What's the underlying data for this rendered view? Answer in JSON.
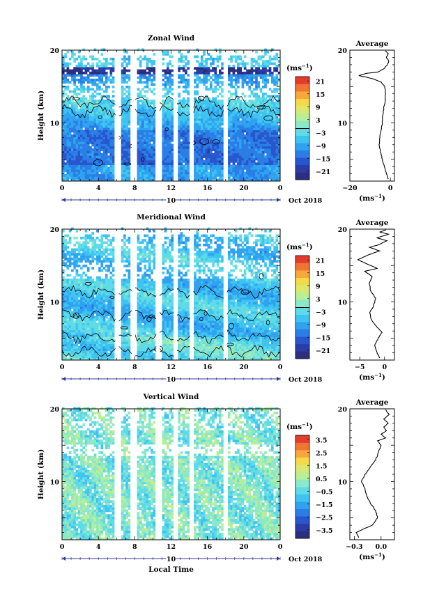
{
  "colors": {
    "cmap": [
      "#2b2f7e",
      "#2c3ca6",
      "#2856cc",
      "#2a7ee6",
      "#2fa3f0",
      "#3fc4f2",
      "#5fdbe8",
      "#8de8c8",
      "#b6ee9a",
      "#dbe870",
      "#f6d94b",
      "#f8a83a",
      "#f27434",
      "#e23c2c"
    ],
    "axis": "#000000",
    "date_axis": "#2b3a8f",
    "gap": "#ffffff"
  },
  "chart_data": [
    {
      "type": "heatmap",
      "title": "Zonal Wind",
      "ylabel": "Height (km)",
      "xlabel": "",
      "xlim": [
        0,
        24
      ],
      "ylim": [
        2,
        20
      ],
      "xticks": [
        "0",
        "4",
        "8",
        "12",
        "16",
        "20",
        "0"
      ],
      "yticks": [
        "10",
        "20"
      ],
      "date_label": "10",
      "date_right": "Oct 2018",
      "colorbar": {
        "unit": "(ms",
        "unit_sup": "−1",
        "ticks": [
          "21",
          "15",
          "9",
          "3",
          "−3",
          "−9",
          "−15",
          "−21"
        ],
        "range": [
          -24,
          24
        ]
      },
      "profile": {
        "title": "Average",
        "xlim": [
          -20,
          2
        ],
        "xticks": [
          "−20",
          "0"
        ],
        "xunit": "(ms",
        "xunit_sup": "−1",
        "points": [
          [
            -1,
            2.3
          ],
          [
            -2,
            3
          ],
          [
            -3,
            4
          ],
          [
            -4,
            5
          ],
          [
            -5,
            6
          ],
          [
            -5.6,
            7
          ],
          [
            -5.2,
            8
          ],
          [
            -4.6,
            9
          ],
          [
            -4,
            10
          ],
          [
            -3.8,
            11
          ],
          [
            -3.3,
            12
          ],
          [
            -2.6,
            13
          ],
          [
            -2.4,
            14
          ],
          [
            -2.8,
            15
          ],
          [
            -4.5,
            15.6
          ],
          [
            -8,
            16
          ],
          [
            -12,
            16.3
          ],
          [
            -15.6,
            16.5
          ],
          [
            -12,
            16.8
          ],
          [
            -6,
            17
          ],
          [
            -3,
            17.5
          ],
          [
            -1.5,
            18
          ],
          [
            -0.8,
            18.5
          ],
          [
            -2,
            19
          ],
          [
            -1,
            19.5
          ],
          [
            -2.5,
            19.9
          ]
        ]
      }
    },
    {
      "type": "heatmap",
      "title": "Meridional Wind",
      "ylabel": "Height (km)",
      "xlabel": "",
      "xlim": [
        0,
        24
      ],
      "ylim": [
        2,
        20
      ],
      "xticks": [
        "0",
        "4",
        "8",
        "12",
        "16",
        "20",
        "0"
      ],
      "yticks": [
        "10",
        "20"
      ],
      "date_label": "10",
      "date_right": "Oct 2018",
      "colorbar": {
        "unit": "(ms",
        "unit_sup": "−1",
        "ticks": [
          "21",
          "15",
          "9",
          "3",
          "−3",
          "−9",
          "−15",
          "−21"
        ],
        "range": [
          -24,
          24
        ]
      },
      "profile": {
        "title": "Average",
        "xlim": [
          -7,
          2
        ],
        "xticks": [
          "−5",
          "0"
        ],
        "xunit": "(ms",
        "xunit_sup": "−1",
        "points": [
          [
            -1,
            2.3
          ],
          [
            -1.5,
            3
          ],
          [
            -2,
            4
          ],
          [
            -1.3,
            5
          ],
          [
            -0.5,
            5.8
          ],
          [
            -1.5,
            6.5
          ],
          [
            -2.6,
            7.5
          ],
          [
            -3,
            8.5
          ],
          [
            -2.2,
            9.5
          ],
          [
            -1.8,
            10.5
          ],
          [
            -2.8,
            11.5
          ],
          [
            -3.1,
            12.5
          ],
          [
            -2.5,
            13.5
          ],
          [
            -4,
            14.2
          ],
          [
            -1.5,
            14.6
          ],
          [
            -3.5,
            15.2
          ],
          [
            -5.4,
            15.8
          ],
          [
            -3.5,
            16.4
          ],
          [
            -1,
            17
          ],
          [
            -3,
            17.5
          ],
          [
            -1,
            17.9
          ],
          [
            0.5,
            18.4
          ],
          [
            -1.5,
            18.8
          ],
          [
            0.8,
            19.3
          ],
          [
            -1,
            19.6
          ],
          [
            0.3,
            19.9
          ]
        ]
      }
    },
    {
      "type": "heatmap",
      "title": "Vertical Wind",
      "ylabel": "Height (km)",
      "xlabel": "Local Time",
      "xlim": [
        0,
        24
      ],
      "ylim": [
        2,
        20
      ],
      "xticks": [
        "0",
        "4",
        "8",
        "12",
        "16",
        "20",
        "0"
      ],
      "yticks": [
        "10",
        "20"
      ],
      "date_label": "10",
      "date_right": "Oct 2018",
      "colorbar": {
        "unit": "(ms",
        "unit_sup": "−1",
        "ticks": [
          "3.5",
          "2.5",
          "1.5",
          "0.5",
          "−0.5",
          "−1.5",
          "−2.5",
          "−3.5"
        ],
        "range": [
          -4,
          4
        ]
      },
      "profile": {
        "title": "Average",
        "xlim": [
          -0.35,
          0.15
        ],
        "xticks": [
          "−0.3",
          "0.0"
        ],
        "xunit": "(ms",
        "xunit_sup": "−1",
        "points": [
          [
            -0.25,
            2.3
          ],
          [
            -0.28,
            3
          ],
          [
            -0.1,
            4
          ],
          [
            -0.04,
            5
          ],
          [
            -0.06,
            6
          ],
          [
            -0.12,
            7
          ],
          [
            -0.16,
            8
          ],
          [
            -0.18,
            9
          ],
          [
            -0.22,
            10
          ],
          [
            -0.18,
            11
          ],
          [
            -0.12,
            12
          ],
          [
            -0.06,
            13
          ],
          [
            -0.03,
            14
          ],
          [
            0.0,
            15
          ],
          [
            -0.04,
            15.6
          ],
          [
            0.05,
            16
          ],
          [
            0.0,
            16.5
          ],
          [
            0.06,
            17
          ],
          [
            0.03,
            17.5
          ],
          [
            0.08,
            18
          ],
          [
            0.03,
            18.6
          ],
          [
            0.09,
            19.2
          ],
          [
            0.05,
            19.9
          ]
        ]
      }
    }
  ]
}
